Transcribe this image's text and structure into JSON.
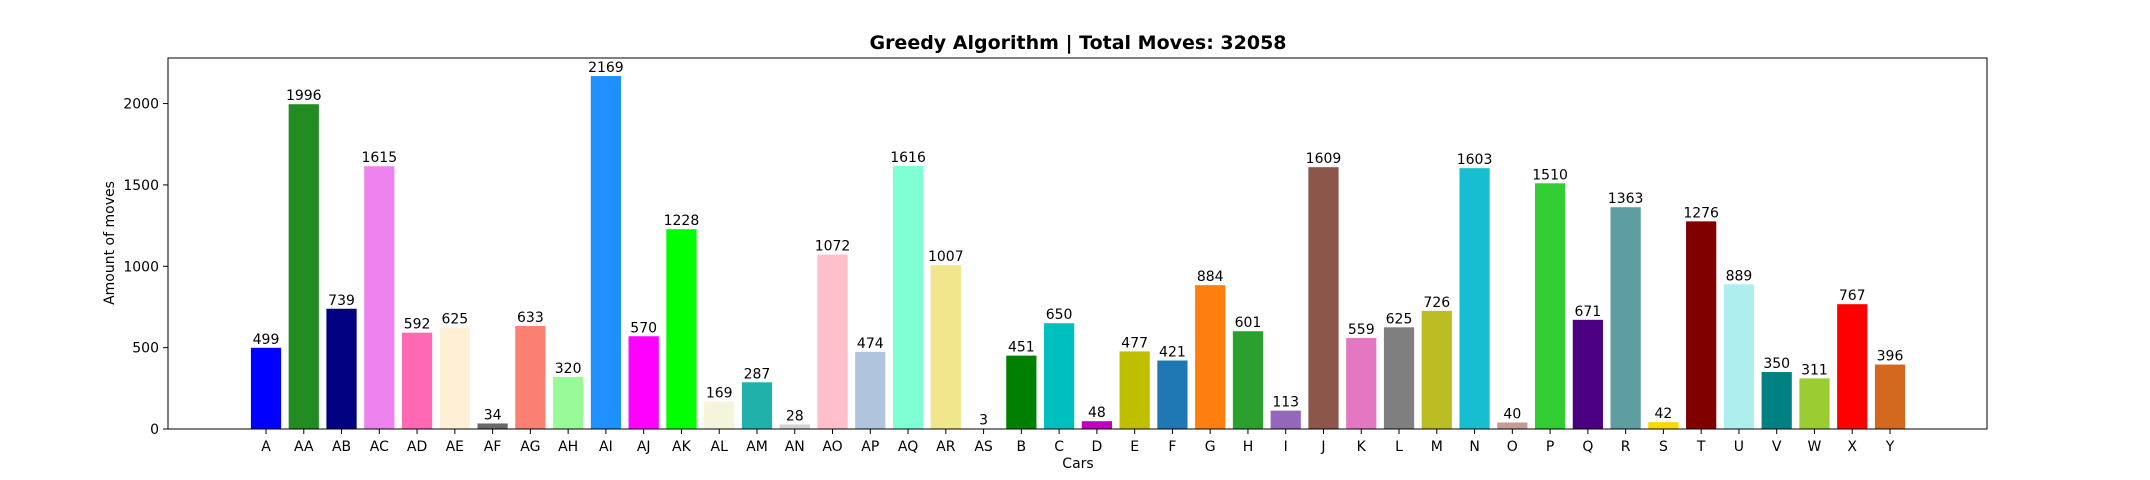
{
  "chart_data": {
    "type": "bar",
    "title": "Greedy Algorithm | Total Moves: 32058",
    "xlabel": "Cars",
    "ylabel": "Amount of moves",
    "ylim": [
      0,
      2280
    ],
    "yticks": [
      0,
      500,
      1000,
      1500,
      2000
    ],
    "grid": false,
    "legend": "none",
    "categories": [
      "A",
      "AA",
      "AB",
      "AC",
      "AD",
      "AE",
      "AF",
      "AG",
      "AH",
      "AI",
      "AJ",
      "AK",
      "AL",
      "AM",
      "AN",
      "AO",
      "AP",
      "AQ",
      "AR",
      "AS",
      "B",
      "C",
      "D",
      "E",
      "F",
      "G",
      "H",
      "I",
      "J",
      "K",
      "L",
      "M",
      "N",
      "O",
      "P",
      "Q",
      "R",
      "S",
      "T",
      "U",
      "V",
      "W",
      "X",
      "Y"
    ],
    "values": [
      499,
      1996,
      739,
      1615,
      592,
      625,
      34,
      633,
      320,
      2169,
      570,
      1228,
      169,
      287,
      28,
      1072,
      474,
      1616,
      1007,
      3,
      451,
      650,
      48,
      477,
      421,
      884,
      601,
      113,
      1609,
      559,
      625,
      726,
      1603,
      40,
      1510,
      671,
      1363,
      42,
      1276,
      889,
      350,
      311,
      767,
      396
    ],
    "colors": [
      "#0000ff",
      "#228b22",
      "#000080",
      "#ee82ee",
      "#ff69b4",
      "#ffefd5",
      "#696969",
      "#fa8072",
      "#98fb98",
      "#1e90ff",
      "#ff00ff",
      "#00ff00",
      "#f5f5dc",
      "#20b2aa",
      "#d3d3d3",
      "#ffc0cb",
      "#b0c4de",
      "#7fffd4",
      "#f0e68c",
      "#ffffe0",
      "#008000",
      "#00bfbf",
      "#bf00bf",
      "#bfbf00",
      "#1f77b4",
      "#ff7f0e",
      "#2ca02c",
      "#9467bd",
      "#8c564b",
      "#e377c2",
      "#7f7f7f",
      "#bcbd22",
      "#17becf",
      "#c49c94",
      "#32cd32",
      "#4b0082",
      "#5f9ea0",
      "#ffd700",
      "#800000",
      "#afeeee",
      "#008080",
      "#9acd32",
      "#ff0000",
      "#d2691e"
    ]
  }
}
